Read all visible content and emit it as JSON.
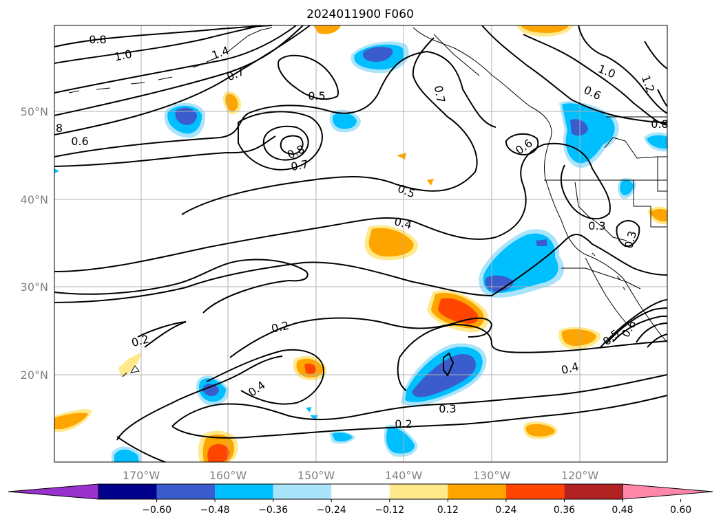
{
  "title": "2024011900 F060",
  "map": {
    "lon_ticks": [
      "170°W",
      "160°W",
      "150°W",
      "140°W",
      "130°W",
      "120°W"
    ],
    "lat_ticks": [
      "50°N",
      "40°N",
      "30°N",
      "20°N"
    ],
    "grid": true,
    "contour_color": "#000000",
    "contour_labels": [
      "0.8",
      "1.0",
      "1.4",
      "0.7",
      "0.5",
      "8",
      "0.6",
      "0.8",
      "0.7",
      "0.7",
      "1.0",
      "0.6",
      "1.2",
      "0.8",
      "0.6",
      "0.5",
      "0.4",
      "0.3",
      "0.3",
      "0.2",
      "0.2",
      "0.4",
      "0.5",
      "0.6",
      "0.4",
      "0.3",
      "0.2"
    ]
  },
  "colorbar": {
    "ticks": [
      "−0.60",
      "−0.48",
      "−0.36",
      "−0.24",
      "−0.12",
      "0.12",
      "0.24",
      "0.36",
      "0.48",
      "0.60"
    ],
    "colors": [
      "#9932cc",
      "#00008b",
      "#3a5ccc",
      "#00bfff",
      "#aae4fb",
      "#ffffff",
      "#ffe98a",
      "#ffa500",
      "#ff4500",
      "#b22222",
      "#ff88aa"
    ],
    "extend": "both"
  }
}
